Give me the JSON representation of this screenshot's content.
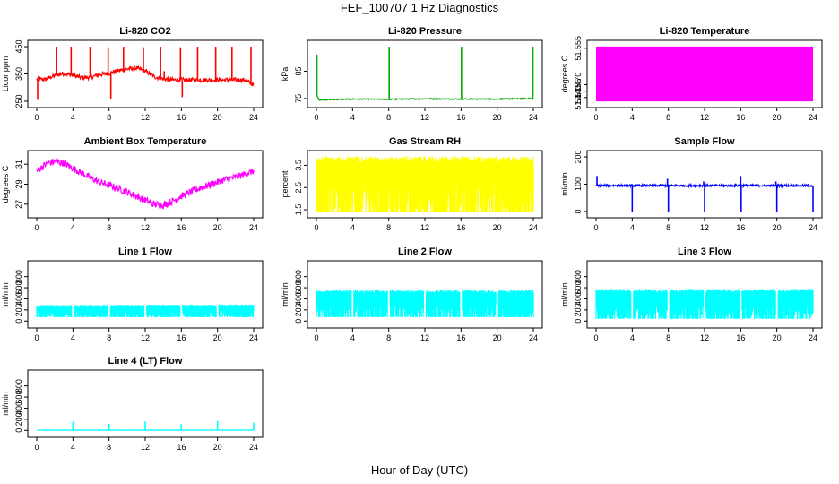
{
  "page": {
    "title": "FEF_100707  1 Hz Diagnostics",
    "xlabel": "Hour of Day (UTC)"
  },
  "chart_data": [
    {
      "type": "line",
      "title": "Li-820 CO2",
      "ylabel": "Licor ppm",
      "color": "#ff0000",
      "xlim": [
        0,
        24
      ],
      "xticks": [
        "0",
        "4",
        "8",
        "12",
        "16",
        "20",
        "24"
      ],
      "ylim": [
        240,
        460
      ],
      "yticks": [
        "250",
        "350",
        "450"
      ],
      "series": [
        {
          "x": [
            0,
            1,
            2,
            3,
            4,
            5,
            6,
            7,
            8,
            9,
            10,
            11,
            12,
            13,
            14,
            15,
            16,
            17,
            18,
            19,
            20,
            21,
            22,
            23,
            24
          ],
          "y": [
            330,
            330,
            345,
            352,
            345,
            336,
            338,
            348,
            352,
            362,
            368,
            372,
            360,
            340,
            332,
            328,
            328,
            328,
            328,
            328,
            328,
            328,
            328,
            328,
            310
          ],
          "noise": 8,
          "spikes": [
            {
              "x": 2.2,
              "y": 450
            },
            {
              "x": 3.8,
              "y": 450
            },
            {
              "x": 5.9,
              "y": 450
            },
            {
              "x": 7.9,
              "y": 448
            },
            {
              "x": 8.2,
              "y": 260
            },
            {
              "x": 9.6,
              "y": 450
            },
            {
              "x": 11.8,
              "y": 448
            },
            {
              "x": 13.7,
              "y": 450
            },
            {
              "x": 14.1,
              "y": 360
            },
            {
              "x": 15.9,
              "y": 448
            },
            {
              "x": 16.1,
              "y": 265
            },
            {
              "x": 17.8,
              "y": 450
            },
            {
              "x": 19.8,
              "y": 450
            },
            {
              "x": 21.6,
              "y": 450
            },
            {
              "x": 23.7,
              "y": 450
            },
            {
              "x": 0.1,
              "y": 255
            }
          ]
        }
      ]
    },
    {
      "type": "line",
      "title": "Li-820 Pressure",
      "ylabel": "kPa",
      "color": "#00aa00",
      "xlim": [
        0,
        24
      ],
      "xticks": [
        "0",
        "4",
        "8",
        "12",
        "16",
        "20",
        "24"
      ],
      "ylim": [
        73,
        95
      ],
      "yticks": [
        "75",
        "85"
      ],
      "series": [
        {
          "x": [
            0,
            0.05,
            0.3,
            4,
            8,
            12,
            16,
            20,
            24
          ],
          "y": [
            91,
            76,
            74.5,
            74.8,
            74.7,
            74.9,
            74.8,
            74.8,
            75
          ],
          "noise": 0.2,
          "spikes": [
            {
              "x": 0.05,
              "y": 91
            },
            {
              "x": 8.05,
              "y": 94
            },
            {
              "x": 16.05,
              "y": 94
            },
            {
              "x": 23.95,
              "y": 94
            }
          ]
        }
      ]
    },
    {
      "type": "area",
      "title": "Li-820 Temperature",
      "ylabel": "degrees C",
      "color": "#ff00ff",
      "xlim": [
        0,
        24
      ],
      "xticks": [
        "0",
        "4",
        "8",
        "12",
        "16",
        "20",
        "24"
      ],
      "ylim": [
        51.425,
        51.565
      ],
      "yticks": [
        "51.440",
        "51.455",
        "51.470",
        "51.555"
      ],
      "series": [
        {
          "x": [
            0,
            24
          ],
          "y_low": [
            51.431,
            51.431
          ],
          "y_high": [
            51.559,
            51.559
          ]
        }
      ]
    },
    {
      "type": "line",
      "title": "Ambient Box Temperature",
      "ylabel": "degrees C",
      "color": "#ff00ff",
      "xlim": [
        0,
        24
      ],
      "xticks": [
        "0",
        "4",
        "8",
        "12",
        "16",
        "20",
        "24"
      ],
      "ylim": [
        26,
        32
      ],
      "yticks": [
        "27",
        "29",
        "31"
      ],
      "series": [
        {
          "x": [
            0,
            1,
            2,
            3,
            4,
            5,
            6,
            7,
            8,
            9,
            10,
            11,
            12,
            13,
            14,
            15,
            16,
            17,
            18,
            19,
            20,
            21,
            22,
            23,
            24
          ],
          "y": [
            30.3,
            31.0,
            31.3,
            31.1,
            30.6,
            30.1,
            29.6,
            29.2,
            28.9,
            28.6,
            28.2,
            27.8,
            27.4,
            27.0,
            26.9,
            27.3,
            27.8,
            28.2,
            28.6,
            28.9,
            29.2,
            29.5,
            29.7,
            30.0,
            30.3
          ],
          "noise": 0.35
        }
      ]
    },
    {
      "type": "line",
      "title": "Gas Stream RH",
      "ylabel": "percent",
      "color": "#ffff00",
      "xlim": [
        0,
        24
      ],
      "xticks": [
        "0",
        "4",
        "8",
        "12",
        "16",
        "20",
        "24"
      ],
      "ylim": [
        1.3,
        4.0
      ],
      "yticks": [
        "1.5",
        "2.5",
        "3.5"
      ],
      "series": [
        {
          "x": [
            0,
            24
          ],
          "y_low": [
            1.4,
            1.4
          ],
          "y_high": [
            3.9,
            3.9
          ]
        }
      ]
    },
    {
      "type": "line",
      "title": "Sample Flow",
      "ylabel": "ml/min",
      "color": "#0000ff",
      "xlim": [
        0,
        24
      ],
      "xticks": [
        "0",
        "4",
        "8",
        "12",
        "16",
        "20",
        "24"
      ],
      "ylim": [
        -10,
        210
      ],
      "yticks": [
        "0",
        "100",
        "200"
      ],
      "series": [
        {
          "x": [
            0,
            24
          ],
          "y": [
            95,
            95
          ],
          "noise": 4,
          "spikes": [
            {
              "x": 0.1,
              "y": 130
            },
            {
              "x": 4,
              "y": 0
            },
            {
              "x": 8,
              "y": 0
            },
            {
              "x": 7.9,
              "y": 120
            },
            {
              "x": 12,
              "y": 0
            },
            {
              "x": 11.9,
              "y": 110
            },
            {
              "x": 16,
              "y": 130
            },
            {
              "x": 16.05,
              "y": 0
            },
            {
              "x": 20,
              "y": 0
            },
            {
              "x": 19.9,
              "y": 110
            },
            {
              "x": 24,
              "y": 0
            }
          ]
        }
      ]
    },
    {
      "type": "line",
      "title": "Line 1 Flow",
      "ylabel": "ml/min",
      "color": "#00ffff",
      "xlim": [
        0,
        24
      ],
      "xticks": [
        "0",
        "4",
        "8",
        "12",
        "16",
        "20",
        "24"
      ],
      "ylim": [
        -60,
        1020
      ],
      "yticks": [
        "0",
        "200",
        "400",
        "600",
        "800"
      ],
      "series": [
        {
          "x": [
            0,
            24
          ],
          "y_low": [
            70,
            70
          ],
          "y_high": [
            290,
            300
          ],
          "gaps": [
            4,
            8,
            12,
            16,
            20
          ]
        }
      ]
    },
    {
      "type": "line",
      "title": "Line 2 Flow",
      "ylabel": "ml/min",
      "color": "#00ffff",
      "xlim": [
        0,
        24
      ],
      "xticks": [
        "0",
        "4",
        "8",
        "12",
        "16",
        "20",
        "24"
      ],
      "ylim": [
        -60,
        1020
      ],
      "yticks": [
        "0",
        "200",
        "400",
        "600",
        "800"
      ],
      "series": [
        {
          "x": [
            0,
            24
          ],
          "y_low": [
            70,
            70
          ],
          "y_high": [
            560,
            560
          ],
          "gaps": [
            4,
            8,
            12,
            16,
            20
          ]
        }
      ]
    },
    {
      "type": "line",
      "title": "Line 3 Flow",
      "ylabel": "ml/min",
      "color": "#00ffff",
      "xlim": [
        0,
        24
      ],
      "xticks": [
        "0",
        "4",
        "8",
        "12",
        "16",
        "20",
        "24"
      ],
      "ylim": [
        -60,
        1020
      ],
      "yticks": [
        "0",
        "200",
        "400",
        "600",
        "800"
      ],
      "series": [
        {
          "x": [
            0,
            24
          ],
          "y_low": [
            40,
            40
          ],
          "y_high": [
            580,
            580
          ],
          "gaps": [
            4,
            8,
            12,
            16,
            20
          ]
        }
      ]
    },
    {
      "type": "line",
      "title": "Line 4 (LT) Flow",
      "ylabel": "ml/min",
      "color": "#00ffff",
      "xlim": [
        0,
        24
      ],
      "xticks": [
        "0",
        "4",
        "8",
        "12",
        "16",
        "20",
        "24"
      ],
      "ylim": [
        -60,
        1020
      ],
      "yticks": [
        "0",
        "200",
        "400",
        "600",
        "800"
      ],
      "series": [
        {
          "x": [
            0,
            24
          ],
          "y": [
            5,
            5
          ],
          "noise": 3,
          "spikes": [
            {
              "x": 4,
              "y": 160
            },
            {
              "x": 8,
              "y": 120
            },
            {
              "x": 12,
              "y": 160
            },
            {
              "x": 16,
              "y": 110
            },
            {
              "x": 20,
              "y": 170
            },
            {
              "x": 24,
              "y": 140
            }
          ]
        }
      ]
    }
  ]
}
